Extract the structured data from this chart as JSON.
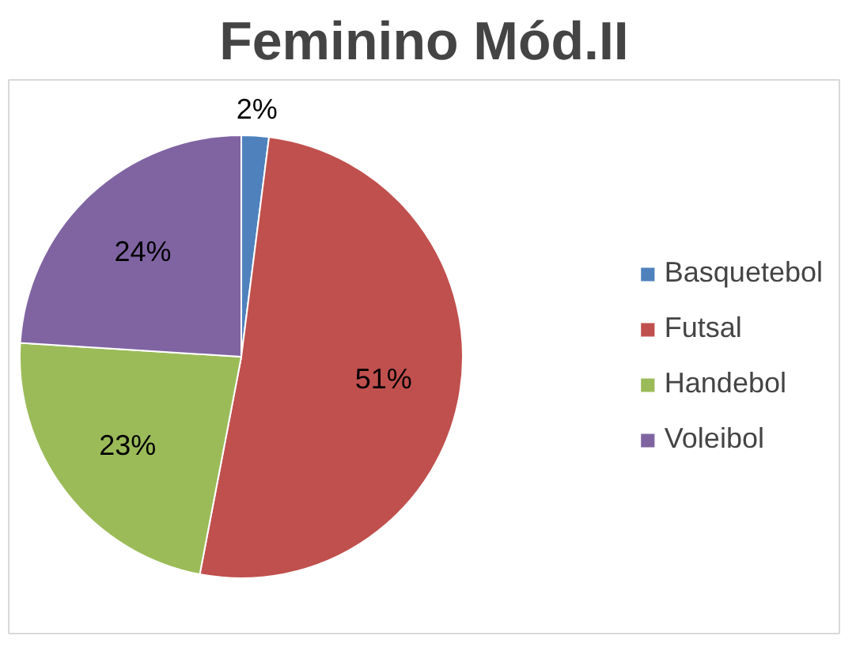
{
  "chart_data": {
    "type": "pie",
    "title": "Feminino Mód.II",
    "categories": [
      "Basquetebol",
      "Futsal",
      "Handebol",
      "Voleibol"
    ],
    "values": [
      2,
      51,
      23,
      24
    ],
    "colors": [
      "#4f81bd",
      "#c0504d",
      "#9bbb59",
      "#8064a2"
    ],
    "value_labels": [
      "2%",
      "51%",
      "23%",
      "24%"
    ],
    "legend": "right"
  }
}
